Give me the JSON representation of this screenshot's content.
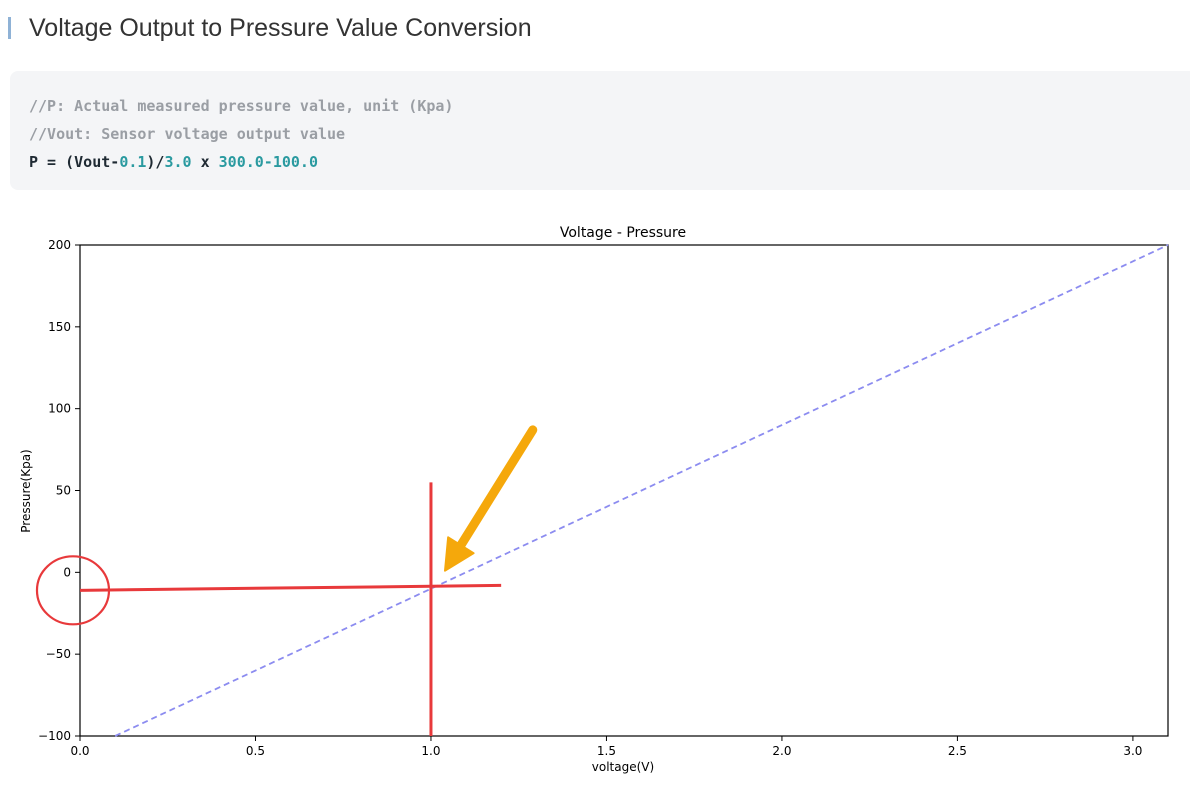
{
  "heading": {
    "title": "Voltage Output to Pressure Value Conversion",
    "accent_color": "#8fb2d6"
  },
  "code": {
    "comment_1": "//P: Actual measured pressure value, unit (Kpa)",
    "comment_2": "//Vout: Sensor voltage output value",
    "formula": {
      "p1": "P = (Vout-",
      "n1": "0.1",
      "p2": ")/",
      "n2": "3.0",
      "p3": " x ",
      "n3": "300.0-100.0"
    },
    "colors": {
      "comment": "#9a9ea4",
      "default": "#1f2a33",
      "number": "#2a9aa0"
    }
  },
  "chart_data": {
    "type": "line",
    "title": "Voltage - Pressure",
    "xlabel": "voltage(V)",
    "ylabel": "Pressure(Kpa)",
    "xlim": [
      0.0,
      3.1
    ],
    "ylim": [
      -100,
      200
    ],
    "xticks": [
      0.0,
      0.5,
      1.0,
      1.5,
      2.0,
      2.5,
      3.0
    ],
    "xtick_labels": [
      "0.0",
      "0.5",
      "1.0",
      "1.5",
      "2.0",
      "2.5",
      "3.0"
    ],
    "yticks": [
      -100,
      -50,
      0,
      50,
      100,
      150,
      200
    ],
    "ytick_labels": [
      "−100",
      "−50",
      "0",
      "50",
      "100",
      "150",
      "200"
    ],
    "grid": false,
    "series": [
      {
        "x": [
          0.1,
          3.1
        ],
        "y": [
          -100,
          200
        ],
        "color": "#8c8cf0",
        "style": "dashed"
      }
    ],
    "annotations": {
      "marker_color": "#e8393b",
      "arrow_color": "#f5a80b",
      "vertical_line": {
        "x": 1.0,
        "y_range": [
          -100,
          55
        ]
      },
      "horizontal_line": {
        "x_range": [
          0.0,
          1.2
        ],
        "y_from": -11,
        "y_to": -8
      },
      "circle_center": {
        "x": -0.02,
        "y": -11
      },
      "arrow": {
        "from": {
          "x": 1.29,
          "y": 87
        },
        "to": {
          "x": 1.04,
          "y": 1
        }
      }
    }
  }
}
